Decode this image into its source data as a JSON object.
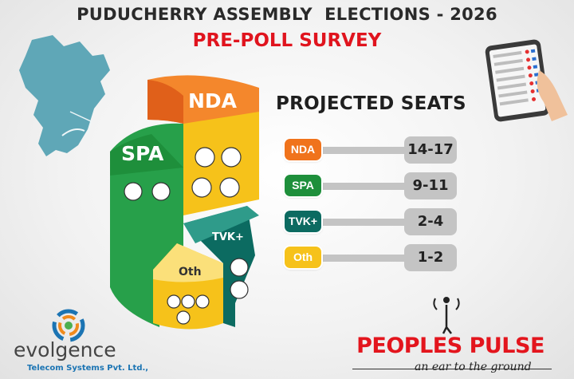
{
  "header": {
    "title": "PUDUCHERRY ASSEMBLY  ELECTIONS - 2026",
    "subtitle": "PRE-POLL SURVEY"
  },
  "chart_data": {
    "type": "bar",
    "title": "PROJECTED SEATS",
    "categories": [
      "NDA",
      "SPA",
      "TVK+",
      "Oth"
    ],
    "series": [
      {
        "values_text": [
          "14-17",
          "9-11",
          "2-4",
          "1-2"
        ],
        "low": [
          14,
          9,
          2,
          1
        ],
        "high": [
          17,
          11,
          4,
          2
        ]
      }
    ],
    "colors": {
      "NDA": "#f0731c",
      "SPA": "#1e8f3b",
      "TVK+": "#0c6b61",
      "Oth": "#f6c21a"
    }
  },
  "seats": {
    "heading": "PROJECTED SEATS",
    "rows": [
      {
        "party": "NDA",
        "seats": "14-17",
        "color": "#f0731c"
      },
      {
        "party": "SPA",
        "seats": "9-11",
        "color": "#1e8f3b"
      },
      {
        "party": "TVK+",
        "seats": "2-4",
        "color": "#0c6b61"
      },
      {
        "party": "Oth",
        "seats": "1-2",
        "color": "#f6c21a"
      }
    ]
  },
  "pie_labels": {
    "nda": "NDA",
    "spa": "SPA",
    "tvk": "TVK+",
    "oth": "Oth"
  },
  "logos": {
    "evolgence_name": "evolgence",
    "evolgence_sub": "Telecom Systems Pvt. Ltd.,",
    "peoples_pulse": "PEOPLES PULSE",
    "peoples_pulse_tagline": "an ear to the ground"
  },
  "icons": [
    "map-icon",
    "voting-machine-icon",
    "party-symbol-icon",
    "pulse-logo-icon",
    "evolgence-logo-icon"
  ]
}
